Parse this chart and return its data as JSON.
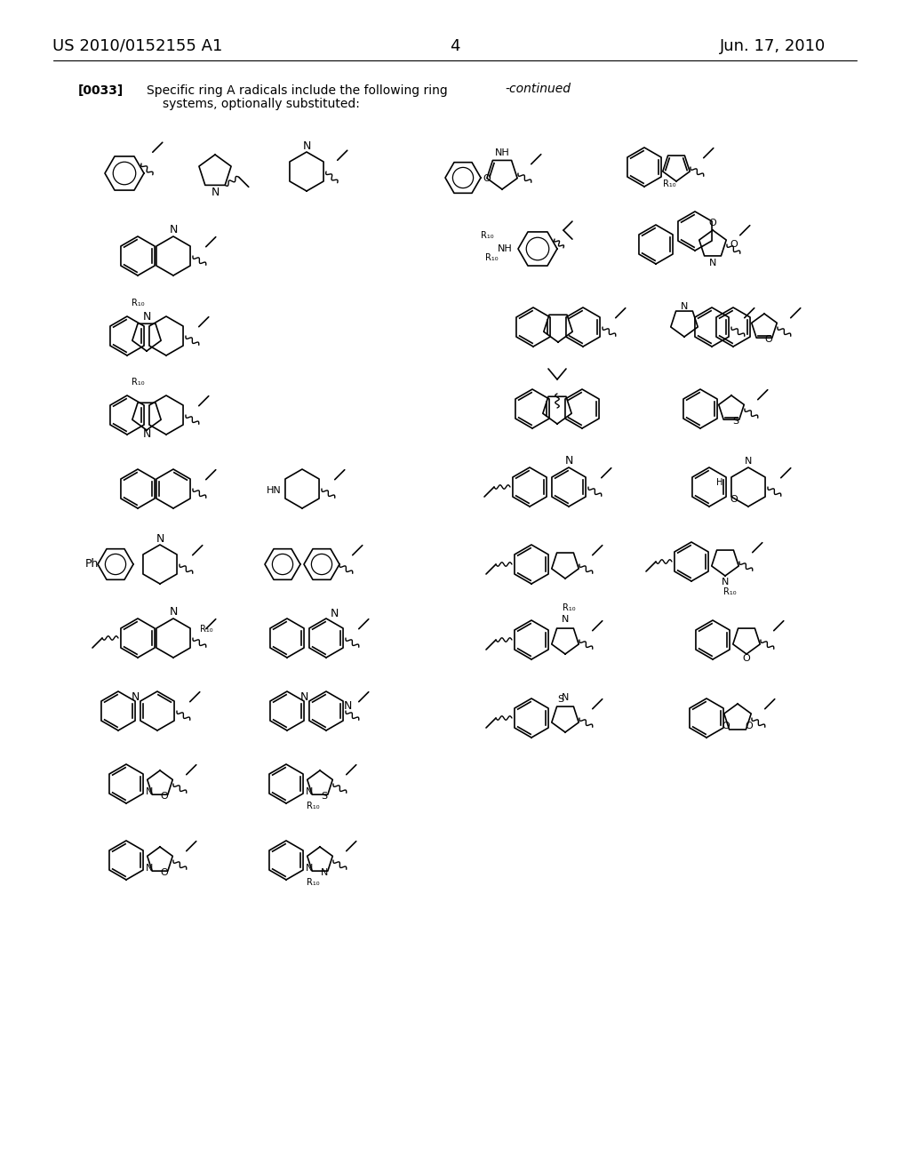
{
  "left_header": "US 2010/0152155 A1",
  "right_header": "Jun. 17, 2010",
  "page_number": "4",
  "paragraph_label": "[0033]",
  "paragraph_text1": "Specific ring A radicals include the following ring",
  "paragraph_text2": "systems, optionally substituted:",
  "continued_label": "-continued",
  "bg_color": "#ffffff",
  "line_color": "#000000"
}
